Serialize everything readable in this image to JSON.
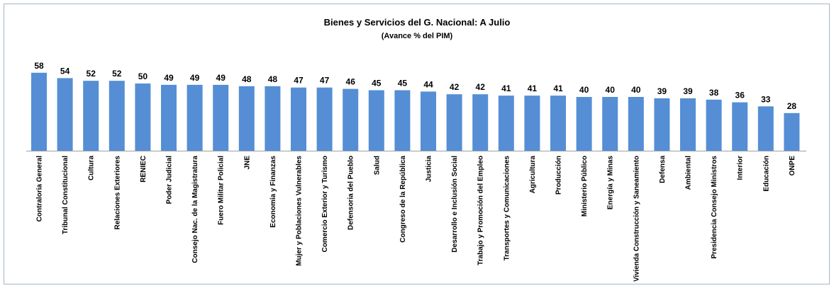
{
  "chart_data": {
    "type": "bar",
    "title": "Bienes y Servicios del G. Nacional:  A Julio",
    "subtitle": "(Avance % del PIM)",
    "categories": [
      "Contraloria General",
      "Tribunal Constitucional",
      "Cultura",
      "Relaciones Exteriores",
      "RENIEC",
      "Poder Judicial",
      "Consejo Nac. de la Magistratura",
      "Fuero Militar Policial",
      "JNE",
      "Economía y Finanzas",
      "Mujer y Poblaciones Vulnerables",
      "Comercio Exterior y Turismo",
      "Defensoria del Pueblo",
      "Salud",
      "Congreso de la República",
      "Justicia",
      "Desarrollo e Inclusión Social",
      "Trabajo y Promoción del Empleo",
      "Transportes y Comunicaciones",
      "Agricultura",
      "Producción",
      "Ministerio Público",
      "Energía y Minas",
      "Vivienda Construcción y Saneamiento",
      "Defensa",
      "Ambiental",
      "Presidencia Consejo Ministros",
      "Interior",
      "Educación",
      "ONPE"
    ],
    "values": [
      58,
      54,
      52,
      52,
      50,
      49,
      49,
      49,
      48,
      48,
      47,
      47,
      46,
      45,
      45,
      44,
      42,
      42,
      41,
      41,
      41,
      40,
      40,
      40,
      39,
      39,
      38,
      36,
      33,
      28
    ],
    "color": "#558ed5"
  }
}
